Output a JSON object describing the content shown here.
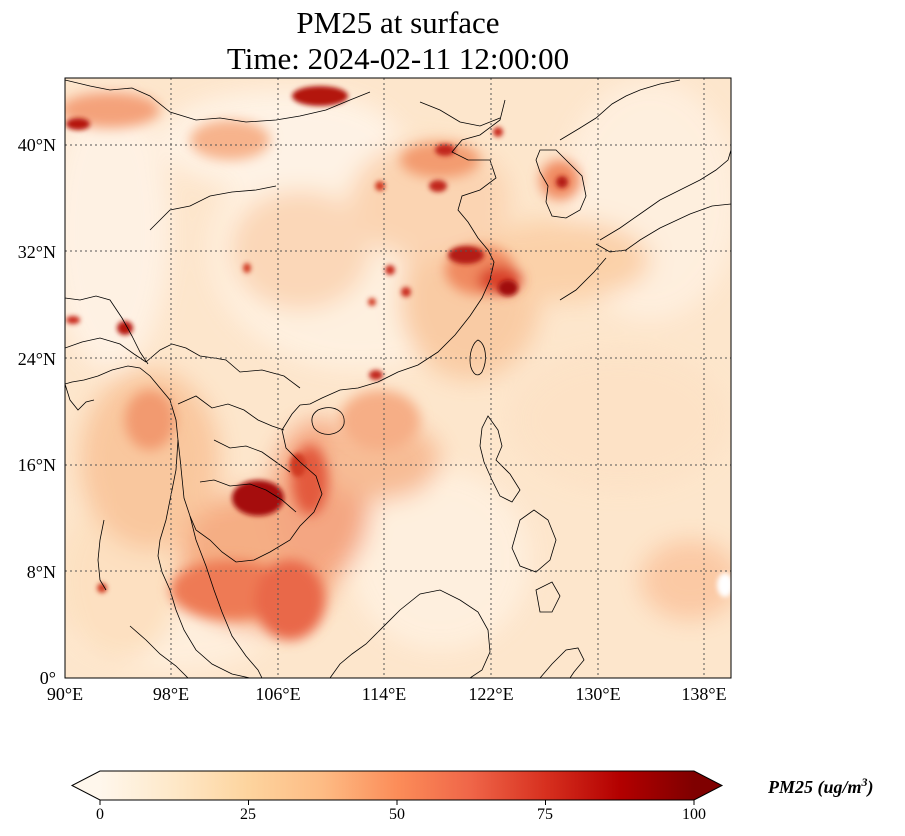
{
  "title": {
    "line1": "PM25 at surface",
    "line2": "Time: 2024-02-11 12:00:00"
  },
  "map": {
    "lon_range": [
      90,
      140
    ],
    "lat_range": [
      0,
      45
    ],
    "gridlines": "dotted",
    "lat_ticks": [
      "40°N",
      "32°N",
      "24°N",
      "16°N",
      "8°N",
      "0°"
    ],
    "lon_ticks": [
      "90°E",
      "98°E",
      "106°E",
      "114°E",
      "122°E",
      "130°E",
      "138°E"
    ]
  },
  "colorbar": {
    "colormap": "OrRd",
    "ticks": [
      "0",
      "25",
      "50",
      "75",
      "100"
    ],
    "label_main": "PM25 (ug/m",
    "label_sup": "3",
    "label_end": ")",
    "extend": "both",
    "colors": [
      "#fff7ec",
      "#fee8c8",
      "#fdd49e",
      "#fdbb84",
      "#fc8d59",
      "#ef6548",
      "#d7301f",
      "#b30000",
      "#7f0000"
    ]
  }
}
